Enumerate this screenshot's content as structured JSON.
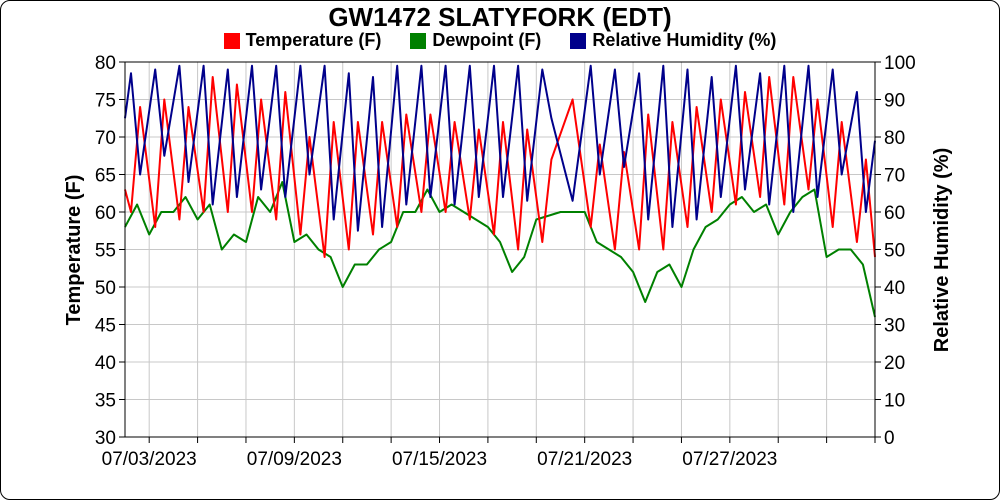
{
  "chart_data": {
    "type": "line",
    "title": "GW1472 SLATYFORK (EDT)",
    "left_axis": {
      "label": "Temperature (F)",
      "min": 30,
      "max": 80,
      "ticks": [
        "30",
        "35",
        "40",
        "45",
        "50",
        "55",
        "60",
        "65",
        "70",
        "75",
        "80"
      ]
    },
    "right_axis": {
      "label": "Relative Humidity (%)",
      "min": 0,
      "max": 100,
      "ticks": [
        "0",
        "10",
        "20",
        "30",
        "40",
        "50",
        "60",
        "70",
        "80",
        "90",
        "100"
      ]
    },
    "x_axis": {
      "start": "2023-07-02",
      "end": "2023-08-02",
      "tick_labels": [
        "07/03/2023",
        "07/09/2023",
        "07/15/2023",
        "07/21/2023",
        "07/27/2023"
      ]
    },
    "grid": true,
    "legend_position": "top",
    "series": [
      {
        "name": "Temperature (F)",
        "color": "#ff0000",
        "axis": "left",
        "points": [
          [
            "2023-07-02T00:00",
            63
          ],
          [
            "2023-07-02T06:00",
            60
          ],
          [
            "2023-07-02T15:00",
            74
          ],
          [
            "2023-07-03T06:00",
            58
          ],
          [
            "2023-07-03T15:00",
            75
          ],
          [
            "2023-07-04T06:00",
            59
          ],
          [
            "2023-07-04T15:00",
            74
          ],
          [
            "2023-07-05T06:00",
            60
          ],
          [
            "2023-07-05T15:00",
            78
          ],
          [
            "2023-07-06T06:00",
            60
          ],
          [
            "2023-07-06T15:00",
            77
          ],
          [
            "2023-07-07T06:00",
            60
          ],
          [
            "2023-07-07T15:00",
            75
          ],
          [
            "2023-07-08T06:00",
            59
          ],
          [
            "2023-07-08T15:00",
            76
          ],
          [
            "2023-07-09T06:00",
            57
          ],
          [
            "2023-07-09T15:00",
            70
          ],
          [
            "2023-07-10T06:00",
            54
          ],
          [
            "2023-07-10T15:00",
            72
          ],
          [
            "2023-07-11T06:00",
            55
          ],
          [
            "2023-07-11T15:00",
            72
          ],
          [
            "2023-07-12T06:00",
            57
          ],
          [
            "2023-07-12T15:00",
            72
          ],
          [
            "2023-07-13T06:00",
            58
          ],
          [
            "2023-07-13T15:00",
            73
          ],
          [
            "2023-07-14T06:00",
            60
          ],
          [
            "2023-07-14T15:00",
            73
          ],
          [
            "2023-07-15T06:00",
            60
          ],
          [
            "2023-07-15T15:00",
            72
          ],
          [
            "2023-07-16T06:00",
            59
          ],
          [
            "2023-07-16T15:00",
            71
          ],
          [
            "2023-07-17T06:00",
            57
          ],
          [
            "2023-07-17T15:00",
            72
          ],
          [
            "2023-07-18T06:00",
            55
          ],
          [
            "2023-07-18T15:00",
            71
          ],
          [
            "2023-07-19T06:00",
            56
          ],
          [
            "2023-07-19T15:00",
            67
          ],
          [
            "2023-07-20T12:00",
            75
          ],
          [
            "2023-07-21T06:00",
            58
          ],
          [
            "2023-07-21T15:00",
            69
          ],
          [
            "2023-07-22T06:00",
            55
          ],
          [
            "2023-07-22T15:00",
            68
          ],
          [
            "2023-07-23T06:00",
            55
          ],
          [
            "2023-07-23T15:00",
            73
          ],
          [
            "2023-07-24T06:00",
            55
          ],
          [
            "2023-07-24T15:00",
            72
          ],
          [
            "2023-07-25T06:00",
            58
          ],
          [
            "2023-07-25T15:00",
            74
          ],
          [
            "2023-07-26T06:00",
            60
          ],
          [
            "2023-07-26T15:00",
            75
          ],
          [
            "2023-07-27T06:00",
            61
          ],
          [
            "2023-07-27T15:00",
            76
          ],
          [
            "2023-07-28T06:00",
            62
          ],
          [
            "2023-07-28T15:00",
            78
          ],
          [
            "2023-07-29T06:00",
            61
          ],
          [
            "2023-07-29T15:00",
            78
          ],
          [
            "2023-07-30T06:00",
            63
          ],
          [
            "2023-07-30T15:00",
            75
          ],
          [
            "2023-07-31T06:00",
            58
          ],
          [
            "2023-07-31T15:00",
            72
          ],
          [
            "2023-08-01T06:00",
            56
          ],
          [
            "2023-08-01T15:00",
            67
          ],
          [
            "2023-08-02T00:00",
            54
          ]
        ]
      },
      {
        "name": "Dewpoint (F)",
        "color": "#008000",
        "axis": "left",
        "points": [
          [
            "2023-07-02T00:00",
            58
          ],
          [
            "2023-07-02T12:00",
            61
          ],
          [
            "2023-07-03T00:00",
            57
          ],
          [
            "2023-07-03T12:00",
            60
          ],
          [
            "2023-07-04T00:00",
            60
          ],
          [
            "2023-07-04T12:00",
            62
          ],
          [
            "2023-07-05T00:00",
            59
          ],
          [
            "2023-07-05T12:00",
            61
          ],
          [
            "2023-07-06T00:00",
            55
          ],
          [
            "2023-07-06T12:00",
            57
          ],
          [
            "2023-07-07T00:00",
            56
          ],
          [
            "2023-07-07T12:00",
            62
          ],
          [
            "2023-07-08T00:00",
            60
          ],
          [
            "2023-07-08T12:00",
            64
          ],
          [
            "2023-07-09T00:00",
            56
          ],
          [
            "2023-07-09T12:00",
            57
          ],
          [
            "2023-07-10T00:00",
            55
          ],
          [
            "2023-07-10T12:00",
            54
          ],
          [
            "2023-07-11T00:00",
            50
          ],
          [
            "2023-07-11T12:00",
            53
          ],
          [
            "2023-07-12T00:00",
            53
          ],
          [
            "2023-07-12T12:00",
            55
          ],
          [
            "2023-07-13T00:00",
            56
          ],
          [
            "2023-07-13T12:00",
            60
          ],
          [
            "2023-07-14T00:00",
            60
          ],
          [
            "2023-07-14T12:00",
            63
          ],
          [
            "2023-07-15T00:00",
            60
          ],
          [
            "2023-07-15T12:00",
            61
          ],
          [
            "2023-07-16T00:00",
            60
          ],
          [
            "2023-07-16T12:00",
            59
          ],
          [
            "2023-07-17T00:00",
            58
          ],
          [
            "2023-07-17T12:00",
            56
          ],
          [
            "2023-07-18T00:00",
            52
          ],
          [
            "2023-07-18T12:00",
            54
          ],
          [
            "2023-07-19T00:00",
            59
          ],
          [
            "2023-07-20T00:00",
            60
          ],
          [
            "2023-07-20T12:00",
            60
          ],
          [
            "2023-07-21T00:00",
            60
          ],
          [
            "2023-07-21T12:00",
            56
          ],
          [
            "2023-07-22T00:00",
            55
          ],
          [
            "2023-07-22T12:00",
            54
          ],
          [
            "2023-07-23T00:00",
            52
          ],
          [
            "2023-07-23T12:00",
            48
          ],
          [
            "2023-07-24T00:00",
            52
          ],
          [
            "2023-07-24T12:00",
            53
          ],
          [
            "2023-07-25T00:00",
            50
          ],
          [
            "2023-07-25T12:00",
            55
          ],
          [
            "2023-07-26T00:00",
            58
          ],
          [
            "2023-07-26T12:00",
            59
          ],
          [
            "2023-07-27T00:00",
            61
          ],
          [
            "2023-07-27T12:00",
            62
          ],
          [
            "2023-07-28T00:00",
            60
          ],
          [
            "2023-07-28T12:00",
            61
          ],
          [
            "2023-07-29T00:00",
            57
          ],
          [
            "2023-07-29T12:00",
            60
          ],
          [
            "2023-07-30T00:00",
            62
          ],
          [
            "2023-07-30T12:00",
            63
          ],
          [
            "2023-07-31T00:00",
            54
          ],
          [
            "2023-07-31T12:00",
            55
          ],
          [
            "2023-08-01T00:00",
            55
          ],
          [
            "2023-08-01T12:00",
            53
          ],
          [
            "2023-08-02T00:00",
            46
          ]
        ]
      },
      {
        "name": "Relative Humidity (%)",
        "color": "#00008b",
        "axis": "right",
        "points": [
          [
            "2023-07-02T00:00",
            85
          ],
          [
            "2023-07-02T06:00",
            97
          ],
          [
            "2023-07-02T15:00",
            70
          ],
          [
            "2023-07-03T06:00",
            98
          ],
          [
            "2023-07-03T15:00",
            75
          ],
          [
            "2023-07-04T06:00",
            99
          ],
          [
            "2023-07-04T15:00",
            68
          ],
          [
            "2023-07-05T06:00",
            99
          ],
          [
            "2023-07-05T15:00",
            62
          ],
          [
            "2023-07-06T06:00",
            98
          ],
          [
            "2023-07-06T15:00",
            64
          ],
          [
            "2023-07-07T06:00",
            99
          ],
          [
            "2023-07-07T15:00",
            66
          ],
          [
            "2023-07-08T06:00",
            99
          ],
          [
            "2023-07-08T15:00",
            64
          ],
          [
            "2023-07-09T06:00",
            99
          ],
          [
            "2023-07-09T15:00",
            70
          ],
          [
            "2023-07-10T06:00",
            99
          ],
          [
            "2023-07-10T15:00",
            58
          ],
          [
            "2023-07-11T06:00",
            97
          ],
          [
            "2023-07-11T15:00",
            55
          ],
          [
            "2023-07-12T06:00",
            96
          ],
          [
            "2023-07-12T15:00",
            56
          ],
          [
            "2023-07-13T06:00",
            99
          ],
          [
            "2023-07-13T15:00",
            62
          ],
          [
            "2023-07-14T06:00",
            99
          ],
          [
            "2023-07-14T15:00",
            64
          ],
          [
            "2023-07-15T06:00",
            99
          ],
          [
            "2023-07-15T15:00",
            62
          ],
          [
            "2023-07-16T06:00",
            99
          ],
          [
            "2023-07-16T15:00",
            64
          ],
          [
            "2023-07-17T06:00",
            99
          ],
          [
            "2023-07-17T15:00",
            64
          ],
          [
            "2023-07-18T06:00",
            99
          ],
          [
            "2023-07-18T15:00",
            63
          ],
          [
            "2023-07-19T06:00",
            98
          ],
          [
            "2023-07-19T15:00",
            85
          ],
          [
            "2023-07-20T12:00",
            63
          ],
          [
            "2023-07-21T06:00",
            99
          ],
          [
            "2023-07-21T15:00",
            70
          ],
          [
            "2023-07-22T06:00",
            98
          ],
          [
            "2023-07-22T15:00",
            72
          ],
          [
            "2023-07-23T06:00",
            97
          ],
          [
            "2023-07-23T15:00",
            58
          ],
          [
            "2023-07-24T06:00",
            99
          ],
          [
            "2023-07-24T15:00",
            56
          ],
          [
            "2023-07-25T06:00",
            98
          ],
          [
            "2023-07-25T15:00",
            58
          ],
          [
            "2023-07-26T06:00",
            96
          ],
          [
            "2023-07-26T15:00",
            64
          ],
          [
            "2023-07-27T06:00",
            99
          ],
          [
            "2023-07-27T15:00",
            66
          ],
          [
            "2023-07-28T06:00",
            97
          ],
          [
            "2023-07-28T15:00",
            62
          ],
          [
            "2023-07-29T06:00",
            99
          ],
          [
            "2023-07-29T15:00",
            60
          ],
          [
            "2023-07-30T06:00",
            99
          ],
          [
            "2023-07-30T15:00",
            64
          ],
          [
            "2023-07-31T06:00",
            98
          ],
          [
            "2023-07-31T15:00",
            70
          ],
          [
            "2023-08-01T06:00",
            92
          ],
          [
            "2023-08-01T15:00",
            60
          ],
          [
            "2023-08-02T00:00",
            79
          ]
        ]
      }
    ]
  }
}
